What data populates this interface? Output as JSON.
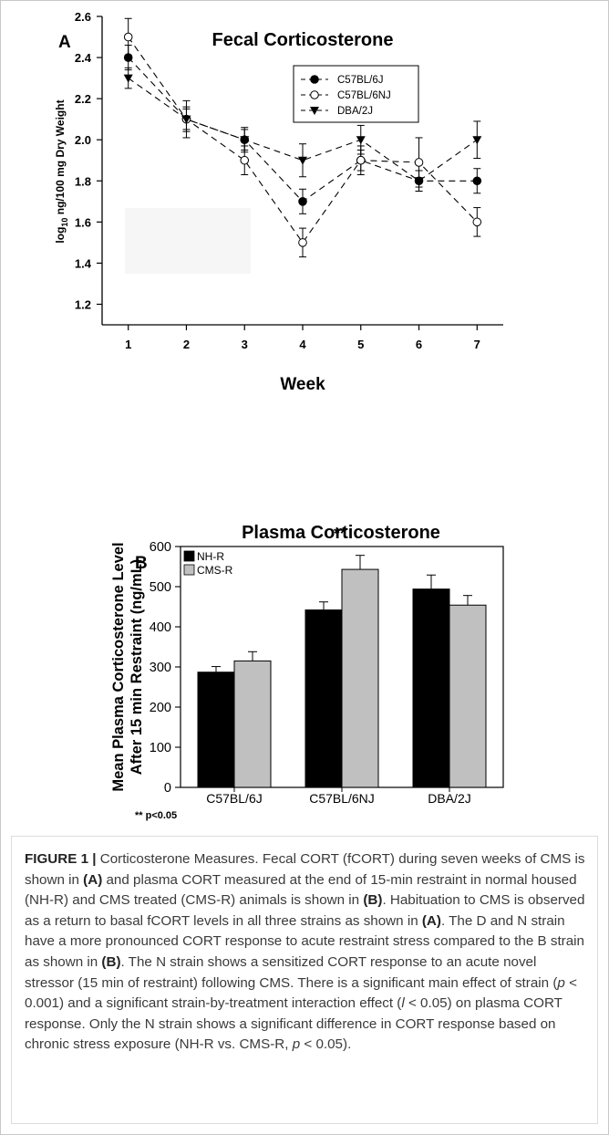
{
  "chart_data": [
    {
      "panel_label": "A",
      "type": "line",
      "title": "Fecal Corticosterone",
      "xlabel": "Week",
      "ylabel_prefix": "log",
      "ylabel_sub": "10",
      "ylabel_suffix": " ng/100 mg Dry Weight",
      "x": [
        1,
        2,
        3,
        4,
        5,
        6,
        7
      ],
      "xlim": [
        0.55,
        7.45
      ],
      "ylim": [
        1.1,
        2.6
      ],
      "yticks": [
        "1.2",
        "1.4",
        "1.6",
        "1.8",
        "2.0",
        "2.2",
        "2.4",
        "2.6"
      ],
      "xticks": [
        "1",
        "2",
        "3",
        "4",
        "5",
        "6",
        "7"
      ],
      "legend_position": "top-right",
      "grid": false,
      "series": [
        {
          "name": "C57BL/6J",
          "marker": "filled-circle",
          "values": [
            2.4,
            2.1,
            2.0,
            1.7,
            1.9,
            1.8,
            1.8
          ],
          "err": [
            0.06,
            0.05,
            0.05,
            0.06,
            0.05,
            0.05,
            0.06
          ]
        },
        {
          "name": "C57BL/6NJ",
          "marker": "open-circle",
          "values": [
            2.5,
            2.1,
            1.9,
            1.5,
            1.9,
            1.89,
            1.6
          ],
          "err": [
            0.09,
            0.09,
            0.07,
            0.07,
            0.07,
            0.12,
            0.07
          ]
        },
        {
          "name": "DBA/2J",
          "marker": "filled-triangle",
          "values": [
            2.3,
            2.1,
            2.0,
            1.9,
            2.0,
            1.8,
            2.0
          ],
          "err": [
            0.05,
            0.06,
            0.06,
            0.08,
            0.07,
            0.05,
            0.09
          ]
        }
      ]
    },
    {
      "panel_label": "B",
      "type": "bar",
      "title": "Plasma Corticosterone",
      "ylabel_line1": "Mean Plasma Corticosterone Level",
      "ylabel_line2": "After 15 min Restraint (ng/mL)",
      "categories": [
        "C57BL/6J",
        "C57BL/6NJ",
        "DBA/2J"
      ],
      "ylim": [
        0,
        600
      ],
      "yticks": [
        "0",
        "100",
        "200",
        "300",
        "400",
        "500",
        "600"
      ],
      "legend_position": "top-left",
      "significance_mark": "**",
      "significance_category": 1,
      "significance_note": "** p<0.05",
      "series": [
        {
          "name": "NH-R",
          "color": "#000000",
          "values": [
            287,
            442,
            494
          ],
          "err": [
            14,
            20,
            35
          ]
        },
        {
          "name": "CMS-R",
          "color": "#c0c0c0",
          "values": [
            315,
            543,
            454
          ],
          "err": [
            23,
            35,
            24
          ]
        }
      ]
    }
  ],
  "caption": {
    "label": "FIGURE 1 |",
    "runs": [
      {
        "t": " Corticosterone Measures. Fecal CORT (fCORT) during seven weeks of CMS is shown in "
      },
      {
        "t": "(A)",
        "b": true
      },
      {
        "t": " and plasma CORT measured at the end of 15-min restraint in normal housed (NH-R) and CMS treated (CMS-R) animals is shown in "
      },
      {
        "t": "(B)",
        "b": true
      },
      {
        "t": ". Habituation to CMS is observed as a return to basal fCORT levels in all three strains as shown in "
      },
      {
        "t": "(A)",
        "b": true
      },
      {
        "t": ". The D and N strain have a more pronounced CORT response to acute restraint stress compared to the B strain as shown in "
      },
      {
        "t": "(B)",
        "b": true
      },
      {
        "t": ". The N strain shows a sensitized CORT response to an acute novel stressor (15 min of restraint) following CMS. There is a significant main effect of strain ("
      },
      {
        "t": "p",
        "i": true
      },
      {
        "t": " < 0.001) and a significant strain-by-treatment interaction effect ("
      },
      {
        "t": "l",
        "i": true
      },
      {
        "t": " < 0.05) on plasma CORT response. Only the N strain shows a significant difference in CORT response based on chronic stress exposure (NH-R vs. CMS-R, "
      },
      {
        "t": "p",
        "i": true
      },
      {
        "t": " < 0.05)."
      }
    ]
  }
}
